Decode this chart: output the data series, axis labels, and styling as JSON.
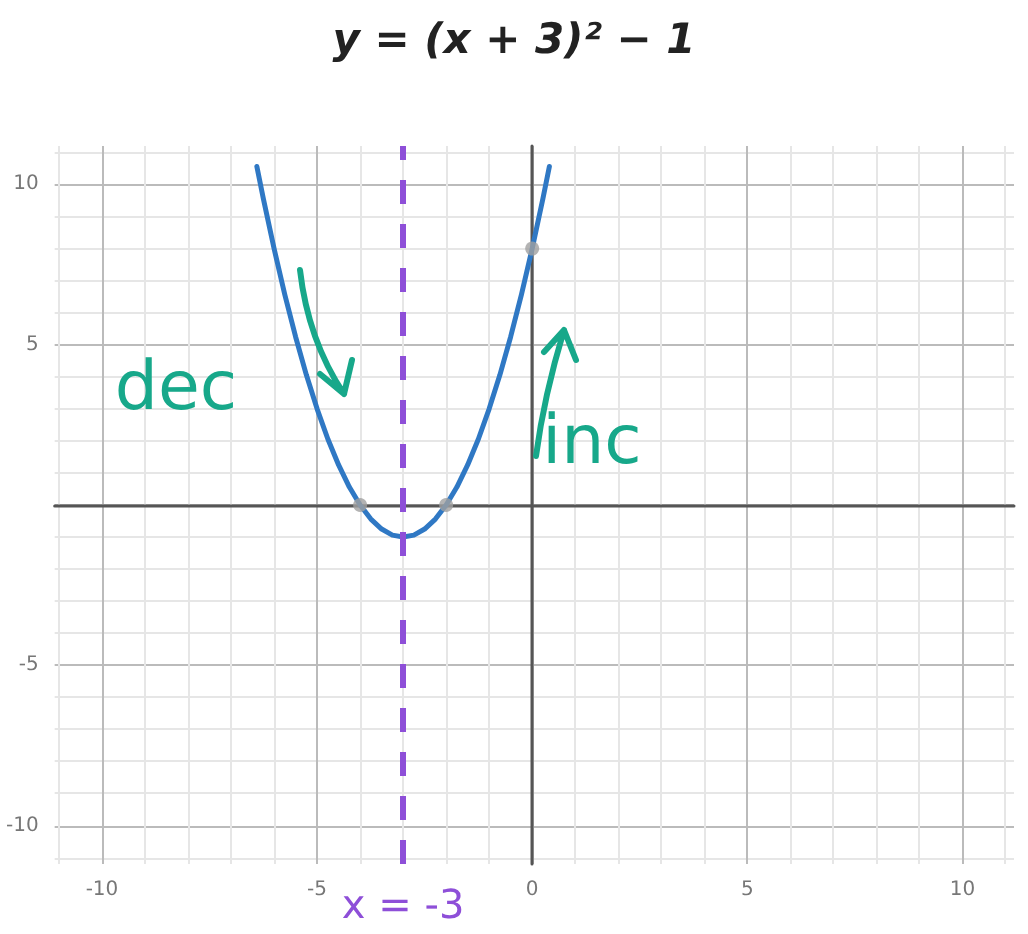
{
  "chart_data": {
    "type": "line",
    "title": "y = (x + 3)² − 1",
    "xlim": [
      -11.1,
      11.2
    ],
    "ylim": [
      -11.2,
      11.2
    ],
    "xticks": [
      -10,
      -5,
      0,
      5,
      10
    ],
    "yticks": [
      -10,
      -5,
      {
        "value": 0,
        "label": null
      },
      5,
      10
    ],
    "grid": true,
    "marker": "none",
    "line_style": "solid",
    "series": [
      {
        "color": "#2f78c4",
        "x": [
          -6.4,
          -6.25,
          -6,
          -5.75,
          -5.5,
          -5.25,
          -5,
          -4.75,
          -4.5,
          -4.25,
          -4,
          -3.75,
          -3.5,
          -3.25,
          -3,
          -2.75,
          -2.5,
          -2.25,
          -2,
          -1.75,
          -1.5,
          -1.25,
          -1,
          -0.75,
          -0.5,
          -0.25,
          0,
          0.25,
          0.4
        ],
        "values": [
          10.56,
          9.56,
          8,
          6.56,
          5.25,
          4.06,
          3,
          2.06,
          1.25,
          0.56,
          0,
          -0.44,
          -0.75,
          -0.94,
          -1,
          -0.94,
          -0.75,
          -0.44,
          0,
          0.56,
          1.25,
          2.06,
          3,
          4.06,
          5.25,
          6.56,
          8,
          9.56,
          10.56
        ]
      },
      {
        "type": "scatter",
        "color": "#a0a0a0",
        "marker": "circle",
        "x": [
          -4,
          -2,
          0
        ],
        "values": [
          0,
          0,
          8
        ]
      }
    ],
    "ref_lines": [
      {
        "axis": "x",
        "value": -3,
        "label": "x = -3",
        "color": "#8e4fd8",
        "line_style": "dashed"
      }
    ],
    "annotations": [
      "dec",
      "inc"
    ]
  }
}
